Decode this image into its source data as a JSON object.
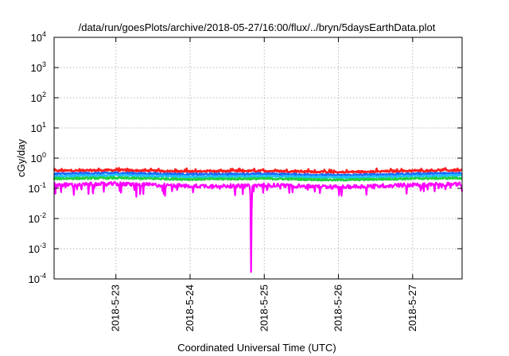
{
  "chart_data": {
    "type": "line",
    "title": "/data/run/goesPlots/archive/2018-05-27/16:00/flux/../bryn/5daysEarthData.plot",
    "xlabel": "Coordinated Universal Time (UTC)",
    "ylabel": "cGy/day",
    "yscale": "log",
    "ylim": [
      0.0001,
      10000
    ],
    "yticks": [
      {
        "value": 0.0001,
        "base": "10",
        "exp": "-4"
      },
      {
        "value": 0.001,
        "base": "10",
        "exp": "-3"
      },
      {
        "value": 0.01,
        "base": "10",
        "exp": "-2"
      },
      {
        "value": 0.1,
        "base": "10",
        "exp": "-1"
      },
      {
        "value": 1,
        "base": "10",
        "exp": "0"
      },
      {
        "value": 10,
        "base": "10",
        "exp": "1"
      },
      {
        "value": 100,
        "base": "10",
        "exp": "2"
      },
      {
        "value": 1000,
        "base": "10",
        "exp": "3"
      },
      {
        "value": 10000,
        "base": "10",
        "exp": "4"
      }
    ],
    "xlim": [
      "2018-05-22 04:00",
      "2018-05-27 16:00"
    ],
    "xticks": [
      "2018-5-23",
      "2018-5-24",
      "2018-5-25",
      "2018-5-26",
      "2018-5-27"
    ],
    "grid": true,
    "legend": "none",
    "series": [
      {
        "color": "#ff2020",
        "x": [
          "2018-05-22 04:00",
          "2018-05-23 00:00",
          "2018-05-24 00:00",
          "2018-05-25 00:00",
          "2018-05-26 00:00",
          "2018-05-27 00:00",
          "2018-05-27 16:00"
        ],
        "values": [
          0.38,
          0.4,
          0.36,
          0.38,
          0.34,
          0.38,
          0.4
        ]
      },
      {
        "color": "#1a6aff",
        "x": [
          "2018-05-22 04:00",
          "2018-05-23 00:00",
          "2018-05-24 00:00",
          "2018-05-25 00:00",
          "2018-05-26 00:00",
          "2018-05-27 00:00",
          "2018-05-27 16:00"
        ],
        "values": [
          0.3,
          0.32,
          0.29,
          0.3,
          0.27,
          0.3,
          0.32
        ]
      },
      {
        "color": "#20c0ff",
        "x": [
          "2018-05-22 04:00",
          "2018-05-23 00:00",
          "2018-05-24 00:00",
          "2018-05-25 00:00",
          "2018-05-26 00:00",
          "2018-05-27 00:00",
          "2018-05-27 16:00"
        ],
        "values": [
          0.25,
          0.27,
          0.24,
          0.25,
          0.23,
          0.25,
          0.27
        ]
      },
      {
        "color": "#20d040",
        "x": [
          "2018-05-22 04:00",
          "2018-05-23 00:00",
          "2018-05-24 00:00",
          "2018-05-25 00:00",
          "2018-05-26 00:00",
          "2018-05-27 00:00",
          "2018-05-27 16:00"
        ],
        "values": [
          0.21,
          0.22,
          0.2,
          0.21,
          0.19,
          0.21,
          0.22
        ]
      },
      {
        "color": "#ff00ff",
        "x": [
          "2018-05-22 04:00",
          "2018-05-23 00:00",
          "2018-05-24 00:00",
          "2018-05-24 19:30",
          "2018-05-24 19:45",
          "2018-05-24 20:00",
          "2018-05-25 00:00",
          "2018-05-26 00:00",
          "2018-05-27 00:00",
          "2018-05-27 16:00"
        ],
        "values": [
          0.13,
          0.14,
          0.12,
          0.12,
          0.0001,
          0.12,
          0.13,
          0.11,
          0.13,
          0.14
        ]
      }
    ]
  }
}
